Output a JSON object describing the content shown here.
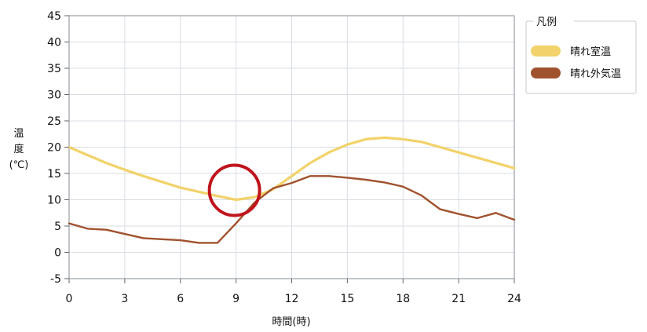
{
  "chart_data": {
    "type": "line",
    "xlabel": "時間(時)",
    "ylabel_lines": [
      "温",
      "度",
      "(℃)"
    ],
    "xlim": [
      0,
      24
    ],
    "ylim": [
      -5,
      45
    ],
    "x_ticks": [
      0,
      3,
      6,
      9,
      12,
      15,
      18,
      21,
      24
    ],
    "y_ticks": [
      -5,
      0,
      5,
      10,
      15,
      20,
      25,
      30,
      35,
      40,
      45
    ],
    "grid": true,
    "legend": {
      "title": "凡例",
      "position": "top-right",
      "entries": [
        "晴れ室温",
        "晴れ外気温"
      ]
    },
    "series": [
      {
        "name": "晴れ室温",
        "color": "#F2D26A",
        "x": [
          0,
          1,
          2,
          3,
          4,
          5,
          6,
          7,
          8,
          9,
          10,
          11,
          12,
          13,
          14,
          15,
          16,
          17,
          18,
          19,
          20,
          21,
          22,
          23,
          24
        ],
        "y": [
          20,
          18.5,
          17,
          15.7,
          14.5,
          13.4,
          12.3,
          11.5,
          10.7,
          10,
          10.5,
          12,
          14.5,
          17,
          19,
          20.5,
          21.5,
          21.8,
          21.5,
          21,
          20,
          19,
          18,
          17,
          16
        ]
      },
      {
        "name": "晴れ外気温",
        "color": "#A0522D",
        "x": [
          0,
          1,
          2,
          3,
          4,
          5,
          6,
          7,
          8,
          9,
          10,
          11,
          12,
          13,
          14,
          15,
          16,
          17,
          18,
          19,
          20,
          21,
          22,
          23,
          24
        ],
        "y": [
          5.5,
          4.5,
          4.3,
          3.5,
          2.7,
          2.5,
          2.3,
          1.8,
          1.8,
          5.5,
          9.5,
          12.2,
          13.2,
          14.5,
          14.5,
          14.2,
          13.8,
          13.3,
          12.5,
          10.8,
          8.2,
          7.3,
          6.5,
          7.5,
          6.2
        ]
      }
    ],
    "annotations": [
      {
        "type": "circle",
        "x": 9,
        "y": 10,
        "color": "#C0141C"
      }
    ]
  }
}
